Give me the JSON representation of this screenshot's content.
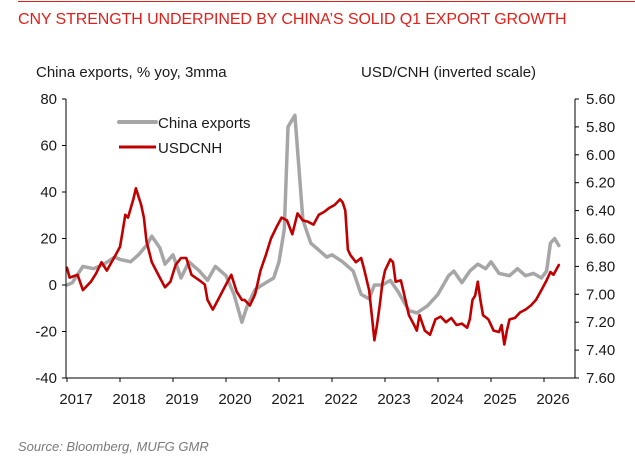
{
  "header": {
    "title": "CNY STRENGTH UNDERPINED BY CHINA’S SOLID Q1 EXPORT GROWTH"
  },
  "footer": {
    "source": "Source: Bloomberg, MUFG GMR"
  },
  "colors": {
    "accent": "#e0201b",
    "exports": "#a6a6a6",
    "usdcnh": "#c00000",
    "axis": "#000000"
  },
  "chart_data": {
    "type": "line",
    "title": "CNY STRENGTH UNDERPINED BY CHINA’S SOLID Q1 EXPORT GROWTH",
    "ylabel_left": "China exports, % yoy, 3mma",
    "ylabel_right": "USD/CNH (inverted scale)",
    "xlim": [
      2017.0,
      2026.45
    ],
    "ylim_left": [
      -40,
      80
    ],
    "ylim_right": [
      5.6,
      7.6
    ],
    "right_axis_inverted": true,
    "x_ticks": [
      "2017",
      "2018",
      "2019",
      "2020",
      "2021",
      "2022",
      "2023",
      "2024",
      "2025",
      "2026"
    ],
    "y_ticks_left": [
      "80",
      "60",
      "40",
      "20",
      "0",
      "-20",
      "-40"
    ],
    "y_ticks_right": [
      "5.60",
      "5.80",
      "6.00",
      "6.20",
      "6.40",
      "6.60",
      "6.80",
      "7.00",
      "7.20",
      "7.40",
      "7.60"
    ],
    "legend": {
      "position": "top-left",
      "entries": [
        "China exports",
        "USDCNH"
      ]
    },
    "series": [
      {
        "name": "China exports",
        "axis": "left",
        "x": [
          2017.0,
          2017.1,
          2017.3,
          2017.5,
          2017.7,
          2017.9,
          2018.0,
          2018.2,
          2018.35,
          2018.5,
          2018.6,
          2018.75,
          2018.85,
          2019.0,
          2019.15,
          2019.3,
          2019.5,
          2019.65,
          2019.8,
          2020.0,
          2020.15,
          2020.3,
          2020.4,
          2020.55,
          2020.75,
          2020.9,
          2021.0,
          2021.1,
          2021.17,
          2021.3,
          2021.45,
          2021.6,
          2021.75,
          2021.9,
          2022.0,
          2022.2,
          2022.4,
          2022.55,
          2022.7,
          2022.8,
          2022.95,
          2023.1,
          2023.25,
          2023.45,
          2023.6,
          2023.8,
          2024.0,
          2024.2,
          2024.3,
          2024.45,
          2024.6,
          2024.75,
          2024.9,
          2025.0,
          2025.15,
          2025.35,
          2025.5,
          2025.65,
          2025.8,
          2025.95,
          2026.05,
          2026.12,
          2026.2,
          2026.28
        ],
        "values": [
          0,
          1,
          8,
          7,
          9,
          12,
          11,
          10,
          13,
          17,
          21,
          16,
          9,
          13,
          3,
          10,
          6,
          2,
          8,
          4,
          -4,
          -16,
          -9,
          -2,
          1,
          3,
          10,
          24,
          68,
          73,
          28,
          18,
          15,
          12,
          13,
          10,
          6,
          -4,
          -6,
          0,
          0,
          2,
          -3,
          -11,
          -12,
          -9,
          -4,
          4,
          6,
          1,
          6,
          9,
          7,
          10,
          5,
          4,
          7,
          4,
          5,
          3,
          6,
          18,
          20,
          17
        ]
      },
      {
        "name": "USDCNH",
        "axis": "right",
        "x": [
          2017.0,
          2017.05,
          2017.2,
          2017.3,
          2017.45,
          2017.55,
          2017.65,
          2017.75,
          2017.9,
          2018.0,
          2018.05,
          2018.1,
          2018.15,
          2018.25,
          2018.3,
          2018.4,
          2018.45,
          2018.5,
          2018.6,
          2018.75,
          2018.85,
          2018.95,
          2019.05,
          2019.15,
          2019.25,
          2019.35,
          2019.5,
          2019.6,
          2019.65,
          2019.75,
          2019.85,
          2020.0,
          2020.1,
          2020.2,
          2020.3,
          2020.35,
          2020.45,
          2020.55,
          2020.65,
          2020.75,
          2020.85,
          2020.95,
          2021.05,
          2021.15,
          2021.25,
          2021.35,
          2021.45,
          2021.55,
          2021.65,
          2021.75,
          2021.85,
          2021.95,
          2022.05,
          2022.15,
          2022.2,
          2022.25,
          2022.3,
          2022.35,
          2022.45,
          2022.55,
          2022.6,
          2022.7,
          2022.75,
          2022.8,
          2022.85,
          2022.9,
          2022.95,
          2023.0,
          2023.1,
          2023.15,
          2023.2,
          2023.3,
          2023.35,
          2023.45,
          2023.55,
          2023.6,
          2023.65,
          2023.75,
          2023.85,
          2023.95,
          2024.05,
          2024.15,
          2024.25,
          2024.35,
          2024.45,
          2024.55,
          2024.6,
          2024.65,
          2024.7,
          2024.75,
          2024.8,
          2024.85,
          2024.95,
          2025.05,
          2025.15,
          2025.2,
          2025.25,
          2025.3,
          2025.35,
          2025.45,
          2025.55,
          2025.65,
          2025.75,
          2025.85,
          2025.95,
          2026.05,
          2026.12,
          2026.18,
          2026.28
        ],
        "values": [
          6.81,
          6.88,
          6.86,
          6.97,
          6.91,
          6.85,
          6.77,
          6.83,
          6.73,
          6.66,
          6.55,
          6.43,
          6.45,
          6.32,
          6.24,
          6.36,
          6.45,
          6.62,
          6.77,
          6.88,
          6.95,
          6.91,
          6.79,
          6.74,
          6.74,
          6.86,
          6.9,
          6.93,
          7.04,
          7.11,
          7.04,
          6.93,
          6.86,
          6.98,
          7.04,
          7.04,
          7.08,
          7.0,
          6.83,
          6.72,
          6.6,
          6.52,
          6.45,
          6.47,
          6.57,
          6.42,
          6.47,
          6.48,
          6.5,
          6.43,
          6.41,
          6.38,
          6.36,
          6.32,
          6.34,
          6.4,
          6.68,
          6.72,
          6.77,
          6.74,
          6.81,
          6.97,
          7.15,
          7.33,
          7.22,
          7.08,
          6.92,
          6.83,
          6.75,
          6.77,
          6.91,
          6.9,
          6.98,
          7.15,
          7.22,
          7.26,
          7.15,
          7.26,
          7.29,
          7.18,
          7.16,
          7.2,
          7.17,
          7.22,
          7.21,
          7.24,
          7.18,
          7.04,
          7.01,
          6.91,
          7.04,
          7.15,
          7.18,
          7.26,
          7.27,
          7.22,
          7.36,
          7.26,
          7.18,
          7.17,
          7.13,
          7.11,
          7.08,
          7.04,
          6.97,
          6.9,
          6.84,
          6.86,
          6.79
        ]
      }
    ]
  }
}
